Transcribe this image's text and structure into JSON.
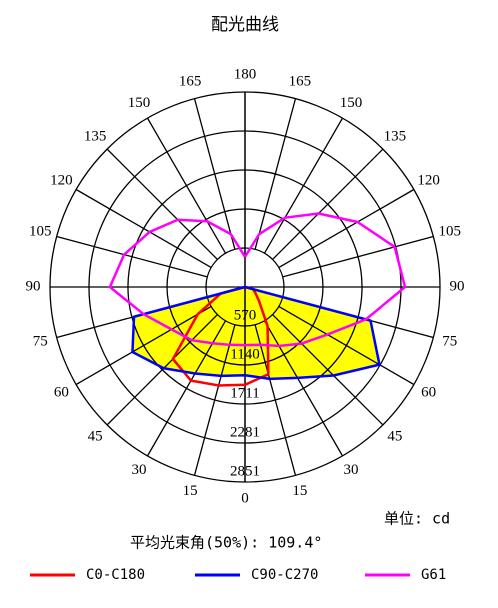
{
  "chart_data": {
    "type": "polar",
    "title": "配光曲线",
    "unit_label": "单位: cd",
    "annotation": "平均光束角(50%): 109.4°",
    "rlim": [
      0,
      2851
    ],
    "rticks": [
      570,
      1140,
      1711,
      2281,
      2851
    ],
    "angle_ticks": [
      0,
      15,
      30,
      45,
      60,
      75,
      90,
      105,
      120,
      135,
      150,
      165,
      180
    ],
    "series": [
      {
        "name": "C0-C180",
        "color": "#ff0000",
        "angles": [
          -90,
          -75,
          -60,
          -45,
          -30,
          -15,
          0,
          15,
          30,
          45,
          60,
          75,
          90
        ],
        "values": [
          0,
          365,
          800,
          1490,
          1580,
          1490,
          1430,
          1320,
          660,
          290,
          175,
          120,
          0
        ]
      },
      {
        "name": "C90-C270",
        "color": "#0000ff",
        "fill": "#ffff00",
        "angles": [
          -90,
          -75,
          -60,
          -45,
          -30,
          -15,
          0,
          15,
          30,
          45,
          60,
          75,
          90
        ],
        "values": [
          0,
          1680,
          1900,
          1680,
          1460,
          1345,
          1290,
          1390,
          1535,
          1830,
          2270,
          1900,
          0
        ]
      },
      {
        "name": "G61",
        "color": "#ff00ff",
        "angles": [
          -180,
          -165,
          -150,
          -135,
          -120,
          -105,
          -90,
          -75,
          -60,
          -45,
          -30,
          -15,
          0,
          15,
          30,
          45,
          60,
          75,
          90,
          105,
          120,
          135,
          150,
          165,
          180
        ],
        "values": [
          440,
          800,
          1110,
          1390,
          1610,
          1830,
          1975,
          1535,
          1240,
          1100,
          950,
          875,
          850,
          875,
          995,
          1170,
          1390,
          1830,
          2340,
          2265,
          1900,
          1520,
          1170,
          800,
          440
        ]
      }
    ]
  }
}
